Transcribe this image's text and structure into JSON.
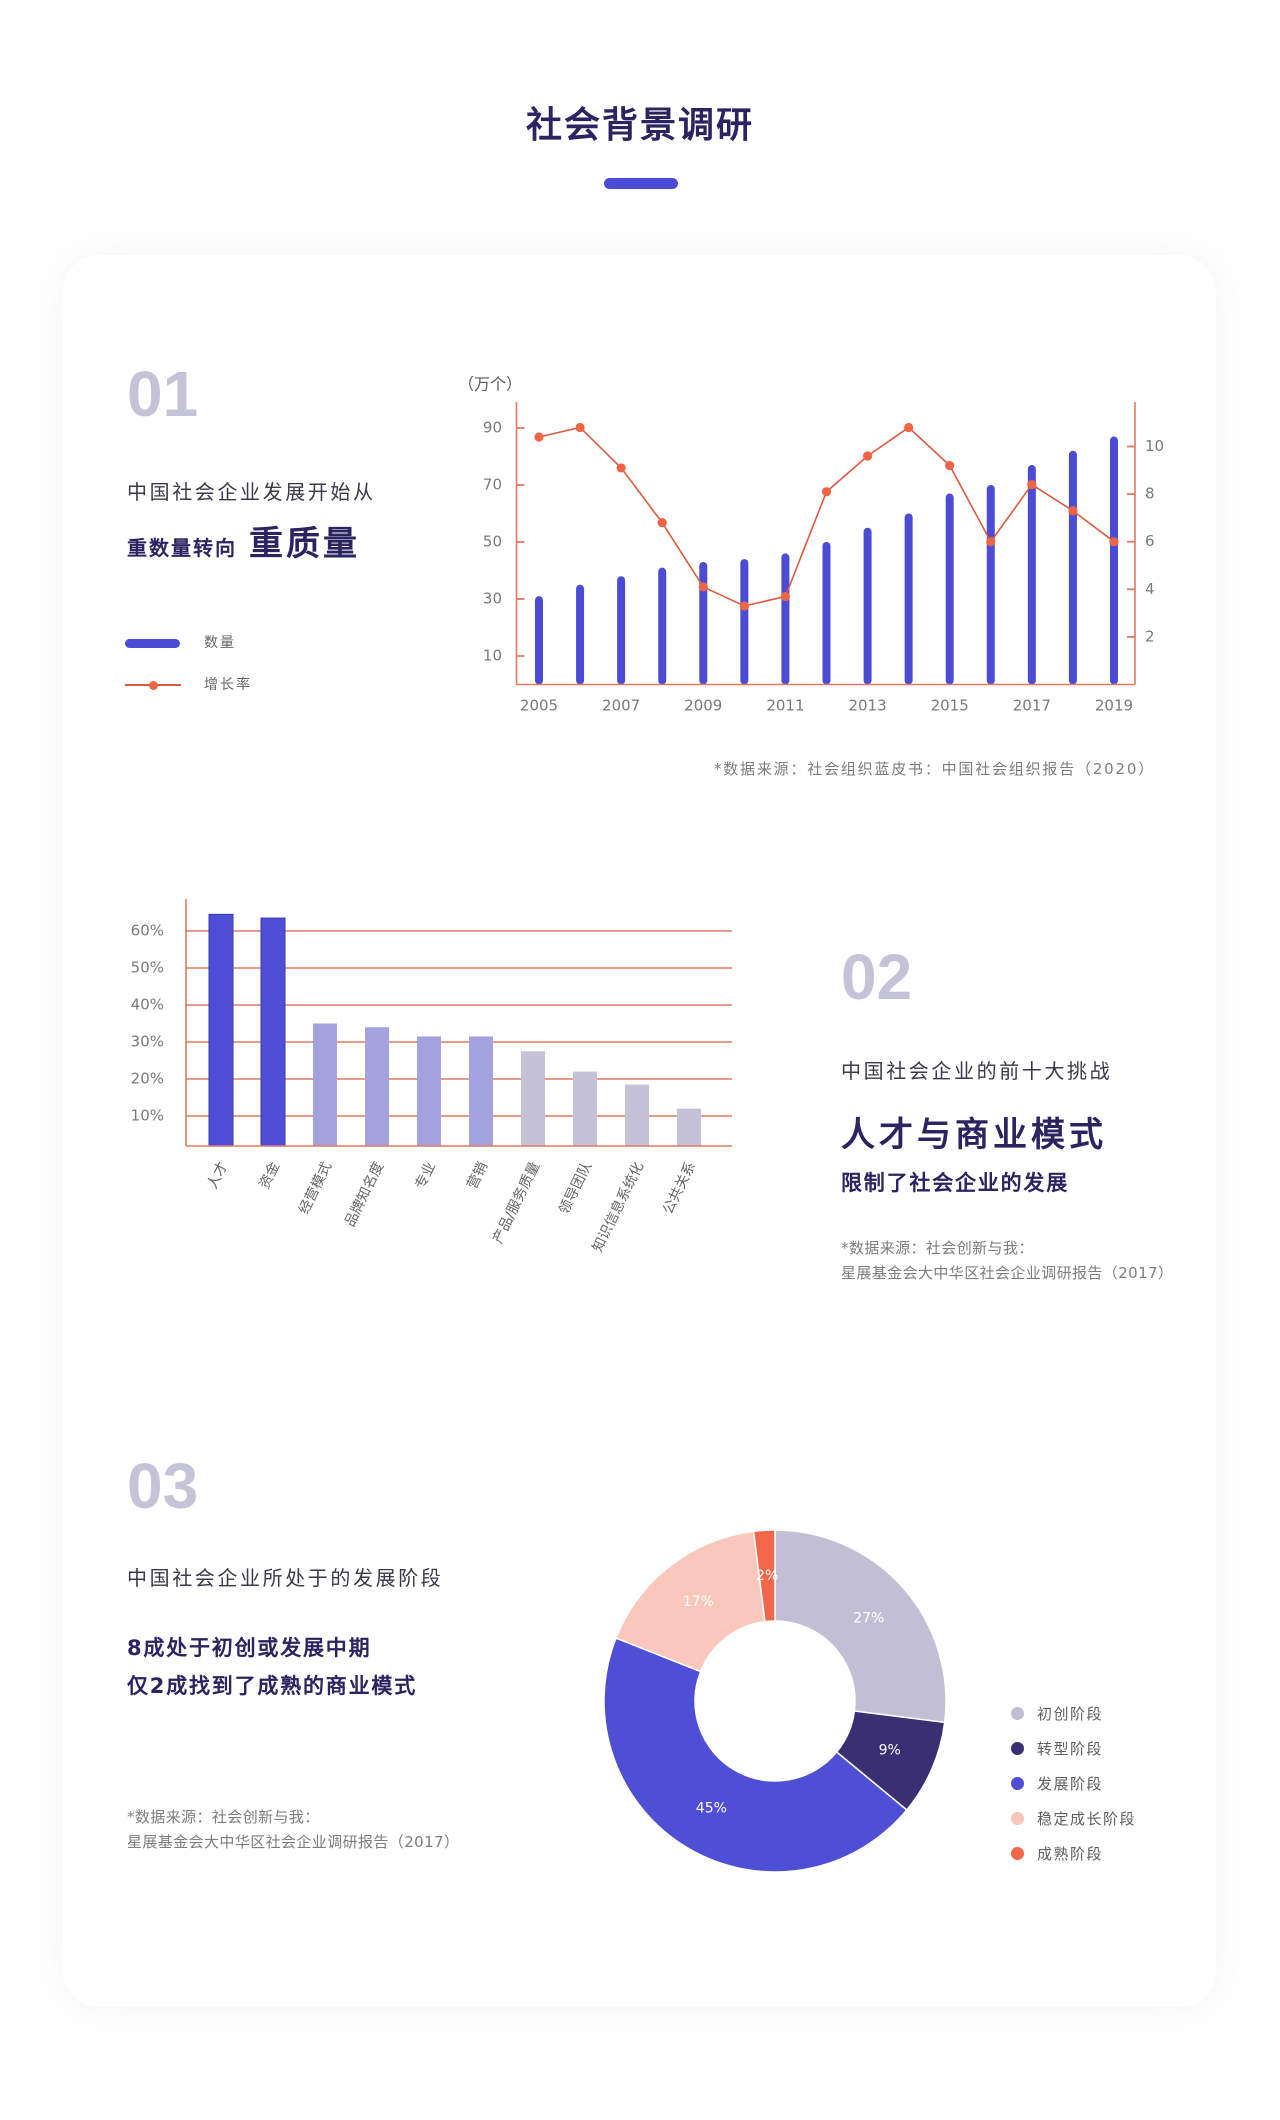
{
  "page": {
    "title": "社会背景调研"
  },
  "theme": {
    "title_color": "#2b2461",
    "accent": "#4b4bd8",
    "number_color": "#c5c3d7",
    "axis_color": "#e07a62"
  },
  "sections": [
    {
      "number": "01",
      "description": "中国社会企业发展开始从",
      "headline_prefix": "重数量转向",
      "headline_emphasis": "重质量",
      "legend": [
        {
          "label": "数量",
          "icon": "bar-swatch-icon",
          "color": "#4b4bd6"
        },
        {
          "label": "增长率",
          "icon": "line-dot-swatch-icon",
          "color": "#ef6445"
        }
      ],
      "source": "*数据来源：社会组织蓝皮书：中国社会组织报告（2020）"
    },
    {
      "number": "02",
      "description": "中国社会企业的前十大挑战",
      "headline": "人才与商业模式",
      "subheadline": "限制了社会企业的发展",
      "source_lines": [
        "*数据来源：社会创新与我：",
        "星展基金会大中华区社会企业调研报告（2017）"
      ]
    },
    {
      "number": "03",
      "description": "中国社会企业所处于的发展阶段",
      "highlights": [
        "8成处于初创或发展中期",
        "仅2成找到了成熟的商业模式"
      ],
      "source_lines": [
        "*数据来源：社会创新与我：",
        "星展基金会大中华区社会企业调研报告（2017）"
      ]
    }
  ],
  "chart_data": [
    {
      "type": "bar+line",
      "title": "",
      "categories": [
        "2005",
        "2006",
        "2007",
        "2008",
        "2009",
        "2010",
        "2011",
        "2012",
        "2013",
        "2014",
        "2015",
        "2016",
        "2017",
        "2018",
        "2019"
      ],
      "x_tick_labels": [
        "2005",
        "2007",
        "2009",
        "2011",
        "2013",
        "2015",
        "2017",
        "2019"
      ],
      "series": [
        {
          "name": "数量",
          "type": "bar",
          "axis": "left",
          "unit": "万个",
          "color": "#4b4bd6",
          "values": [
            31,
            35,
            38,
            41,
            43,
            44,
            46,
            50,
            55,
            60,
            67,
            70,
            77,
            82,
            87
          ]
        },
        {
          "name": "增长率",
          "type": "line",
          "axis": "right",
          "unit": "%",
          "color": "#ef6445",
          "values": [
            10.4,
            10.8,
            9.1,
            6.8,
            4.1,
            3.3,
            3.7,
            8.1,
            9.6,
            10.8,
            9.2,
            6.0,
            8.4,
            7.3,
            6.0
          ]
        }
      ],
      "y_left": {
        "label": "（万个）",
        "ticks": [
          10,
          30,
          50,
          70,
          90
        ],
        "range": [
          0,
          99
        ]
      },
      "y_right": {
        "label": "",
        "ticks": [
          2,
          4,
          6,
          8,
          10
        ],
        "range": [
          0,
          11.9
        ]
      },
      "xlabel": "",
      "grid": false,
      "legend_position": "left",
      "axis_color": "#e07a62",
      "line_color": "#dc5a3e"
    },
    {
      "type": "bar",
      "title": "中国社会企业的前十大挑战",
      "categories": [
        "人才",
        "资金",
        "经营模式",
        "品牌知名度",
        "专业",
        "营销",
        "产品/服务质量",
        "领导团队",
        "知识信息系统化",
        "公共关系"
      ],
      "values": [
        64.5,
        63.5,
        35,
        34,
        31.5,
        31.5,
        27.5,
        22,
        18.5,
        12
      ],
      "unit": "%",
      "y_ticks": [
        10,
        20,
        30,
        40,
        50,
        60
      ],
      "y_tick_labels": [
        "10%",
        "20%",
        "30%",
        "40%",
        "50%",
        "60%"
      ],
      "xlabel": "",
      "ylabel": "",
      "ylim": [
        0,
        68
      ],
      "grid": true,
      "axis_color": "#e07a62",
      "colors": [
        "#4d4dd6",
        "#4d4dd6",
        "#a4a3e0",
        "#a4a3e0",
        "#a4a3e0",
        "#a4a3e0",
        "#c5c2d8",
        "#c5c2d8",
        "#c5c2d8",
        "#c5c2d8"
      ]
    },
    {
      "type": "pie",
      "variant": "donut",
      "title": "中国社会企业所处于的发展阶段",
      "categories": [
        "初创阶段",
        "转型阶段",
        "发展阶段",
        "稳定成长阶段",
        "成熟阶段"
      ],
      "values": [
        27,
        9,
        45,
        17,
        2
      ],
      "labels": [
        "27%",
        "9%",
        "45%",
        "17%",
        "2%"
      ],
      "colors": [
        "#c2bfd5",
        "#3b2f74",
        "#4f4fd6",
        "#f9c7bb",
        "#f2664a"
      ],
      "legend_position": "right",
      "start": "top, clockwise"
    }
  ]
}
